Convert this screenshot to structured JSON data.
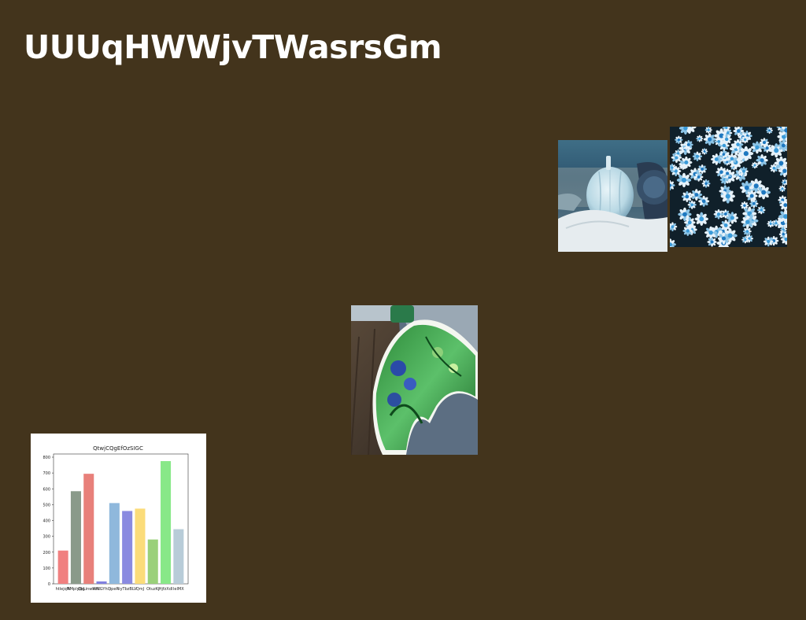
{
  "page": {
    "title": "UUUqHWWjvTWasrsGm",
    "background": "#43341c"
  },
  "images": [
    {
      "name": "pumpkin-photo",
      "subject": "white pumpkin on cloth beside a clock"
    },
    {
      "name": "daisies-photo",
      "subject": "field of blue and white daisies"
    },
    {
      "name": "book-photo",
      "subject": "open magazine with green botanical pages"
    }
  ],
  "chart_data": {
    "type": "bar",
    "title": "QtwjCQgEfOzSIGC",
    "xlabel": "",
    "ylabel": "",
    "ylim": [
      0,
      820
    ],
    "yticks": [
      0,
      100,
      200,
      300,
      400,
      500,
      600,
      700,
      800
    ],
    "grid": false,
    "categories": [
      "htlejqW",
      "RMplyQg",
      "QeLinwMfK",
      "vzUGYhQ",
      "ipeR",
      "iiyTbzBLV",
      "QmJ",
      "OtuzKj",
      "HjfzXdI",
      "lelMX"
    ],
    "values": [
      210,
      585,
      695,
      15,
      510,
      460,
      475,
      280,
      775,
      345
    ],
    "colors": [
      "#f08080",
      "#8a9a8a",
      "#e8807a",
      "#8080e0",
      "#8fb8dc",
      "#8a8ae0",
      "#fbdc7a",
      "#9ad07a",
      "#88e888",
      "#b8ccd8"
    ]
  }
}
